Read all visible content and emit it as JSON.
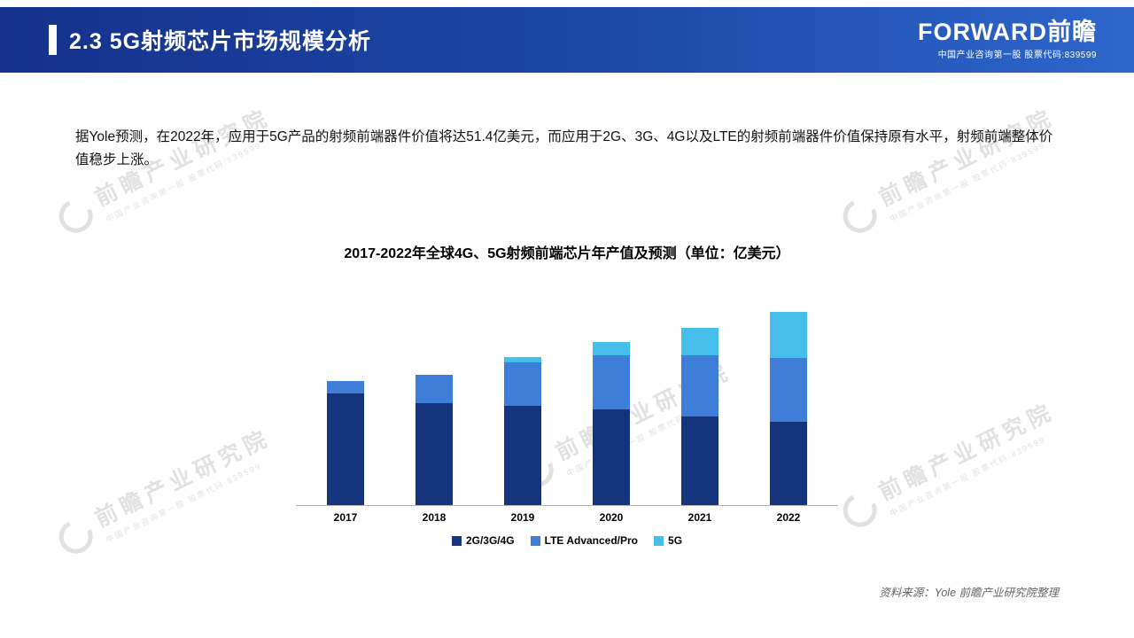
{
  "header": {
    "title": "2.3 5G射频芯片市场规模分析",
    "logo_text": "FORWARD前瞻",
    "logo_sub": "中国产业咨询第一股 股票代码:839599"
  },
  "body": {
    "paragraph": "据Yole预测，在2022年，应用于5G产品的射频前端器件价值将达51.4亿美元，而应用于2G、3G、4G以及LTE的射频前端器件价值保持原有水平，射频前端整体价值稳步上涨。"
  },
  "chart_data": {
    "type": "bar",
    "stacked": true,
    "title": "2017-2022年全球4G、5G射频前端芯片年产值及预测（单位：亿美元）",
    "categories": [
      "2017",
      "2018",
      "2019",
      "2020",
      "2021",
      "2022"
    ],
    "series": [
      {
        "name": "2G/3G/4G",
        "color": "#14357E",
        "values": [
          123,
          113,
          110,
          106,
          98,
          92
        ]
      },
      {
        "name": "LTE Advanced/Pro",
        "color": "#3E7DD8",
        "values": [
          14,
          31,
          48,
          59,
          67,
          70
        ]
      },
      {
        "name": "5G",
        "color": "#45BEEC",
        "values": [
          0,
          0,
          5,
          15,
          31,
          51.4
        ]
      }
    ],
    "ylim": [
      0,
      225
    ],
    "xlabel": "",
    "ylabel": "",
    "grid": false,
    "legend_position": "bottom"
  },
  "watermark": {
    "text": "前瞻产业研究院",
    "sub": "中国产业咨询第一股 股票代码:839599"
  },
  "footer": {
    "source": "资料来源：Yole 前瞻产业研究院整理"
  }
}
